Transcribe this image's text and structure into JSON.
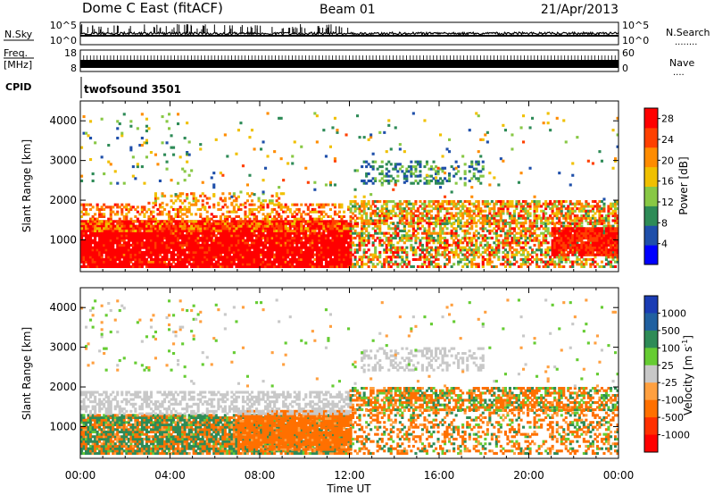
{
  "header": {
    "title": "Dome C East (fitACF)",
    "beam": "Beam 01",
    "date": "21/Apr/2013"
  },
  "strip_nsky": {
    "label": "N.Sky",
    "right_label": "N.Search",
    "right_dots": "........",
    "ticks_left": [
      "10^5",
      "10^0"
    ],
    "ticks_right": [
      "10^5",
      "10^0"
    ]
  },
  "strip_freq": {
    "label_line1": "Freq.",
    "label_line2": "[MHz]",
    "ticks_left": [
      "18",
      "8"
    ],
    "right_label": "Nave",
    "right_dots": "....",
    "ticks_right": [
      "60",
      "0"
    ]
  },
  "cpid": {
    "label": "CPID",
    "value": "twofsound 3501"
  },
  "time_axis": {
    "label": "Time UT",
    "ticks": [
      "00:00",
      "04:00",
      "08:00",
      "12:00",
      "16:00",
      "20:00",
      "00:00"
    ]
  },
  "chart_data": [
    {
      "type": "heatmap",
      "title": "",
      "xlabel": "Time UT",
      "ylabel": "Slant Range [km]",
      "xlim": [
        0,
        24
      ],
      "ylim": [
        200,
        4500
      ],
      "y_ticks": [
        "1000",
        "2000",
        "3000",
        "4000"
      ],
      "colorbar": {
        "label": "Power [dB]",
        "ticks": [
          "4",
          "8",
          "12",
          "16",
          "20",
          "24",
          "28"
        ],
        "range": [
          0,
          30
        ],
        "colors": [
          "#0000ff",
          "#1f4faa",
          "#2e8b57",
          "#88c845",
          "#f0c000",
          "#ff8c00",
          "#ff4000",
          "#ff0000"
        ]
      }
    },
    {
      "type": "heatmap",
      "title": "",
      "xlabel": "Time UT",
      "ylabel": "Slant Range [km]",
      "xlim": [
        0,
        24
      ],
      "ylim": [
        200,
        4500
      ],
      "y_ticks": [
        "1000",
        "2000",
        "3000",
        "4000"
      ],
      "colorbar": {
        "label": "Velocity [m s^-1]",
        "ticks": [
          "1000",
          "500",
          "100",
          "25",
          "-25",
          "-100",
          "-500",
          "-1000"
        ],
        "range": [
          -1000,
          1000
        ],
        "colors": [
          "#1a3cb4",
          "#2060a0",
          "#2e8b57",
          "#66cc33",
          "#c8c8c8",
          "#ffa040",
          "#ff7000",
          "#ff3000",
          "#ff0000"
        ]
      }
    }
  ]
}
